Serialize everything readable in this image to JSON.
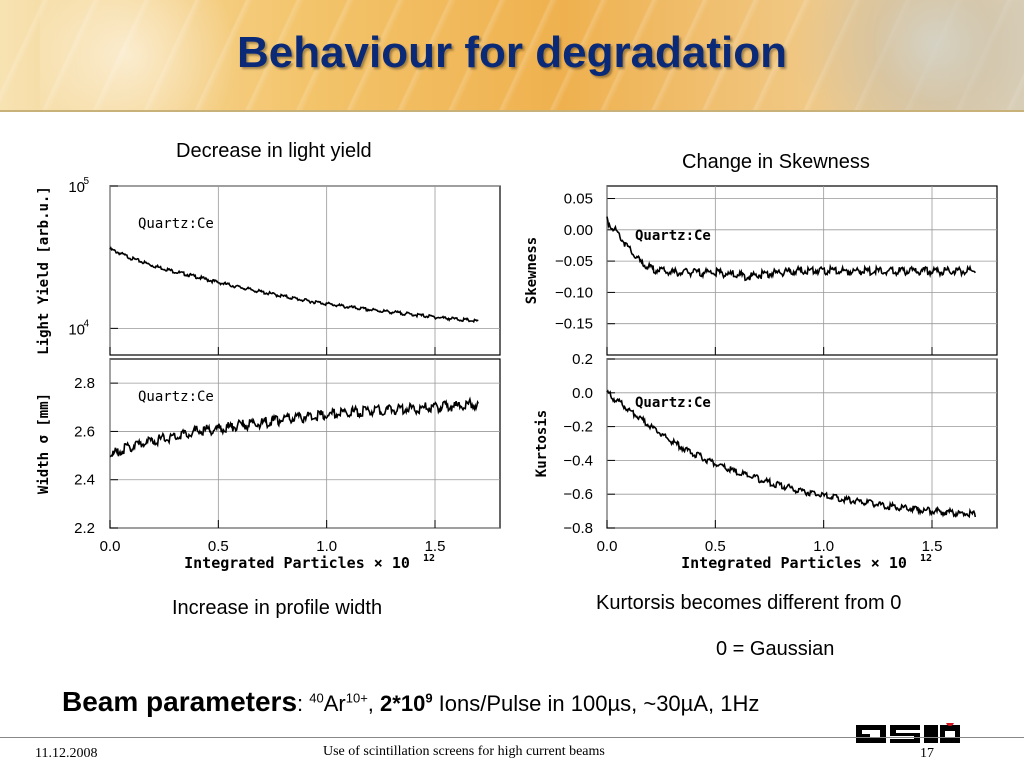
{
  "title": "Behaviour for degradation",
  "captions": {
    "top_left": "Decrease in light yield",
    "top_right": "Change in Skewness",
    "bottom_left": "Increase in profile width",
    "bottom_right": "Kurtorsis becomes different from 0",
    "gaussian_note": "0 = Gaussian"
  },
  "beam": {
    "label": "Beam parameters",
    "colon": ": ",
    "mass_number": "40",
    "element": "Ar",
    "charge": "10+",
    "sep": ", ",
    "intensity": "2*10",
    "intensity_exp": "9",
    "rest": " Ions/Pulse in 100µs, ~30µA, 1Hz"
  },
  "footer": {
    "date": "11.12.2008",
    "subject": "Use of scintillation screens for high current beams",
    "page": "17"
  },
  "chart_data": [
    {
      "type": "line",
      "ylabel": "Light Yield [arb.u.]",
      "annotation": "Quartz:Ce",
      "yscale": "log",
      "xlim": [
        0,
        1.8
      ],
      "ylim": [
        6500,
        100000
      ],
      "yticks": [
        {
          "value": 10000,
          "label": "10",
          "exp": "4"
        },
        {
          "value": 100000,
          "label": "10",
          "exp": "5"
        }
      ],
      "x": [
        0.0,
        0.1,
        0.2,
        0.3,
        0.4,
        0.5,
        0.6,
        0.7,
        0.8,
        0.9,
        1.0,
        1.1,
        1.2,
        1.3,
        1.4,
        1.5,
        1.6,
        1.7
      ],
      "y": [
        36000,
        31000,
        27500,
        25000,
        23000,
        21000,
        19400,
        18000,
        16800,
        15700,
        14900,
        14100,
        13500,
        13000,
        12500,
        12000,
        11600,
        11200
      ]
    },
    {
      "type": "line",
      "ylabel": "Skewness",
      "annotation": "Quartz:Ce",
      "xlim": [
        0,
        1.8
      ],
      "ylim": [
        -0.2,
        0.07
      ],
      "yticks": [
        {
          "value": 0.05,
          "label": "0.05"
        },
        {
          "value": 0.0,
          "label": "0.00"
        },
        {
          "value": -0.05,
          "label": "−0.05"
        },
        {
          "value": -0.1,
          "label": "−0.10"
        },
        {
          "value": -0.15,
          "label": "−0.15"
        }
      ],
      "x": [
        0.0,
        0.05,
        0.1,
        0.15,
        0.2,
        0.3,
        0.4,
        0.5,
        0.6,
        0.65,
        0.7,
        0.8,
        0.9,
        1.0,
        1.1,
        1.2,
        1.3,
        1.4,
        1.5,
        1.6,
        1.7
      ],
      "y": [
        0.015,
        -0.005,
        -0.03,
        -0.05,
        -0.062,
        -0.068,
        -0.068,
        -0.068,
        -0.072,
        -0.075,
        -0.072,
        -0.068,
        -0.065,
        -0.065,
        -0.066,
        -0.066,
        -0.066,
        -0.066,
        -0.066,
        -0.066,
        -0.066
      ]
    },
    {
      "type": "line",
      "ylabel": "Width σ [mm]",
      "xlabel": "Integrated Particles × 10",
      "xlabel_exp": "12",
      "annotation": "Quartz:Ce",
      "xlim": [
        0,
        1.8
      ],
      "ylim": [
        2.2,
        2.9
      ],
      "yticks": [
        {
          "value": 2.8,
          "label": "2.8"
        },
        {
          "value": 2.6,
          "label": "2.6"
        },
        {
          "value": 2.4,
          "label": "2.4"
        },
        {
          "value": 2.2,
          "label": "2.2"
        }
      ],
      "xticks": [
        {
          "value": 0.0,
          "label": "0.0"
        },
        {
          "value": 0.5,
          "label": "0.5"
        },
        {
          "value": 1.0,
          "label": "1.0"
        },
        {
          "value": 1.5,
          "label": "1.5"
        }
      ],
      "x": [
        0.0,
        0.1,
        0.2,
        0.3,
        0.4,
        0.5,
        0.6,
        0.7,
        0.8,
        0.9,
        1.0,
        1.1,
        1.2,
        1.3,
        1.4,
        1.5,
        1.6,
        1.7
      ],
      "y": [
        2.5,
        2.54,
        2.56,
        2.58,
        2.6,
        2.61,
        2.625,
        2.635,
        2.65,
        2.66,
        2.67,
        2.68,
        2.685,
        2.69,
        2.695,
        2.7,
        2.705,
        2.715
      ]
    },
    {
      "type": "line",
      "ylabel": "Kurtosis",
      "xlabel": "Integrated Particles × 10",
      "xlabel_exp": "12",
      "annotation": "Quartz:Ce",
      "xlim": [
        0,
        1.8
      ],
      "ylim": [
        -0.8,
        0.2
      ],
      "yticks": [
        {
          "value": 0.2,
          "label": "0.2"
        },
        {
          "value": 0.0,
          "label": "0.0"
        },
        {
          "value": -0.2,
          "label": "−0.2"
        },
        {
          "value": -0.4,
          "label": "−0.4"
        },
        {
          "value": -0.6,
          "label": "−0.6"
        },
        {
          "value": -0.8,
          "label": "−0.8"
        }
      ],
      "xticks": [
        {
          "value": 0.0,
          "label": "0.0"
        },
        {
          "value": 0.5,
          "label": "0.5"
        },
        {
          "value": 1.0,
          "label": "1.0"
        },
        {
          "value": 1.5,
          "label": "1.5"
        }
      ],
      "x": [
        0.0,
        0.05,
        0.1,
        0.2,
        0.3,
        0.4,
        0.5,
        0.6,
        0.7,
        0.8,
        0.9,
        1.0,
        1.1,
        1.2,
        1.3,
        1.4,
        1.5,
        1.6,
        1.7
      ],
      "y": [
        0.0,
        -0.05,
        -0.1,
        -0.2,
        -0.29,
        -0.36,
        -0.42,
        -0.47,
        -0.51,
        -0.55,
        -0.58,
        -0.61,
        -0.63,
        -0.65,
        -0.67,
        -0.685,
        -0.7,
        -0.71,
        -0.72
      ]
    }
  ]
}
